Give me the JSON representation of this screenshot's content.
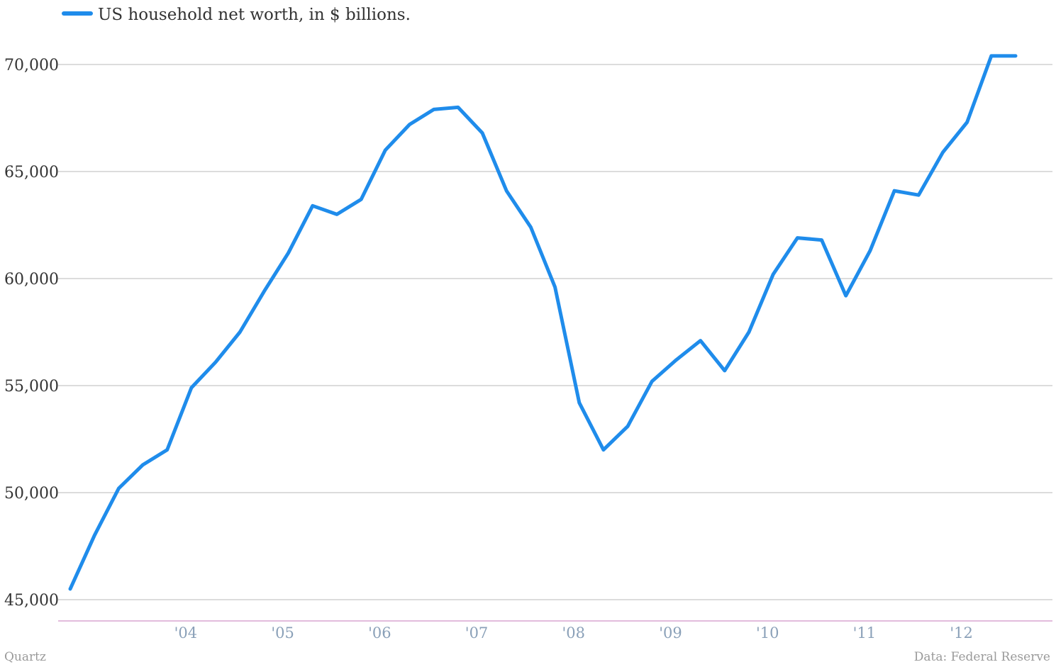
{
  "chart_data": {
    "type": "line",
    "title": "",
    "xlabel": "",
    "ylabel": "",
    "ylim": [
      45000,
      70000
    ],
    "yticks": [
      "45,000",
      "50,000",
      "55,000",
      "60,000",
      "65,000",
      "70,000"
    ],
    "ytick_values": [
      45000,
      50000,
      55000,
      60000,
      65000,
      70000
    ],
    "xticks": [
      "'04",
      "'05",
      "'06",
      "'07",
      "'08",
      "'09",
      "'10",
      "'11",
      "'12"
    ],
    "xtick_values": [
      2004,
      2005,
      2006,
      2007,
      2008,
      2009,
      2010,
      2011,
      2012
    ],
    "grid": true,
    "legend_position": "top-left",
    "series": [
      {
        "name": "US household net worth, in $ billions.",
        "color": "#1f8ceb",
        "x": [
          2003.0,
          2003.25,
          2003.5,
          2003.75,
          2004.0,
          2004.25,
          2004.5,
          2004.75,
          2005.0,
          2005.25,
          2005.5,
          2005.75,
          2006.0,
          2006.25,
          2006.5,
          2006.75,
          2007.0,
          2007.25,
          2007.5,
          2007.75,
          2008.0,
          2008.25,
          2008.5,
          2008.75,
          2009.0,
          2009.25,
          2009.5,
          2009.75,
          2010.0,
          2010.25,
          2010.5,
          2010.75,
          2011.0,
          2011.25,
          2011.5,
          2011.75,
          2012.0,
          2012.25,
          2012.5,
          2012.75
        ],
        "values": [
          45500,
          48000,
          50200,
          51300,
          52000,
          54900,
          56100,
          57500,
          59400,
          61200,
          63400,
          63000,
          63700,
          66000,
          67200,
          67900,
          68000,
          66800,
          64100,
          62400,
          59600,
          54200,
          52000,
          53100,
          55200,
          56200,
          57100,
          55700,
          57500,
          60200,
          61900,
          61800,
          59200,
          61300,
          64100,
          63900,
          65900,
          67300,
          70400,
          70400
        ]
      }
    ]
  },
  "footer": {
    "left": "Quartz",
    "right": "Data: Federal Reserve"
  }
}
